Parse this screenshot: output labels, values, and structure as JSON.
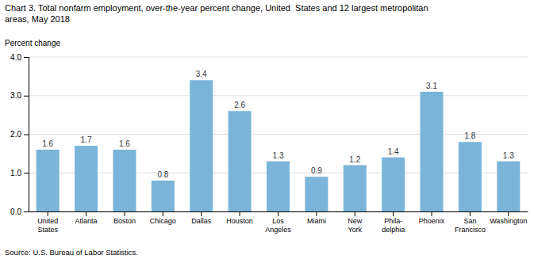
{
  "chart_data": {
    "type": "bar",
    "title": "Chart 3. Total nonfarm employment, over-the-year percent change, United  States and 12 largest metropolitan\nareas, May 2018",
    "ylabel": "Percent change",
    "source": "Source: U.S. Bureau of Labor Statistics.",
    "categories": [
      "United\nStates",
      "Atlanta",
      "Boston",
      "Chicago",
      "Dallas",
      "Houston",
      "Los\nAngeles",
      "Miami",
      "New\nYork",
      "Phila-\ndelphia",
      "Phoenix",
      "San\nFrancisco",
      "Washington"
    ],
    "values": [
      1.6,
      1.7,
      1.6,
      0.8,
      3.4,
      2.6,
      1.3,
      0.9,
      1.2,
      1.4,
      3.1,
      1.8,
      1.3
    ],
    "color": "#7ab4d8",
    "ylim": [
      0,
      4.0
    ],
    "yticks": [
      {
        "value": 0.0,
        "label": "0.0"
      },
      {
        "value": 1.0,
        "label": "1.0"
      },
      {
        "value": 2.0,
        "label": "2.0"
      },
      {
        "value": 3.0,
        "label": "3.0"
      },
      {
        "value": 4.0,
        "label": "4.0"
      }
    ],
    "grid": true,
    "data_labels": true
  }
}
